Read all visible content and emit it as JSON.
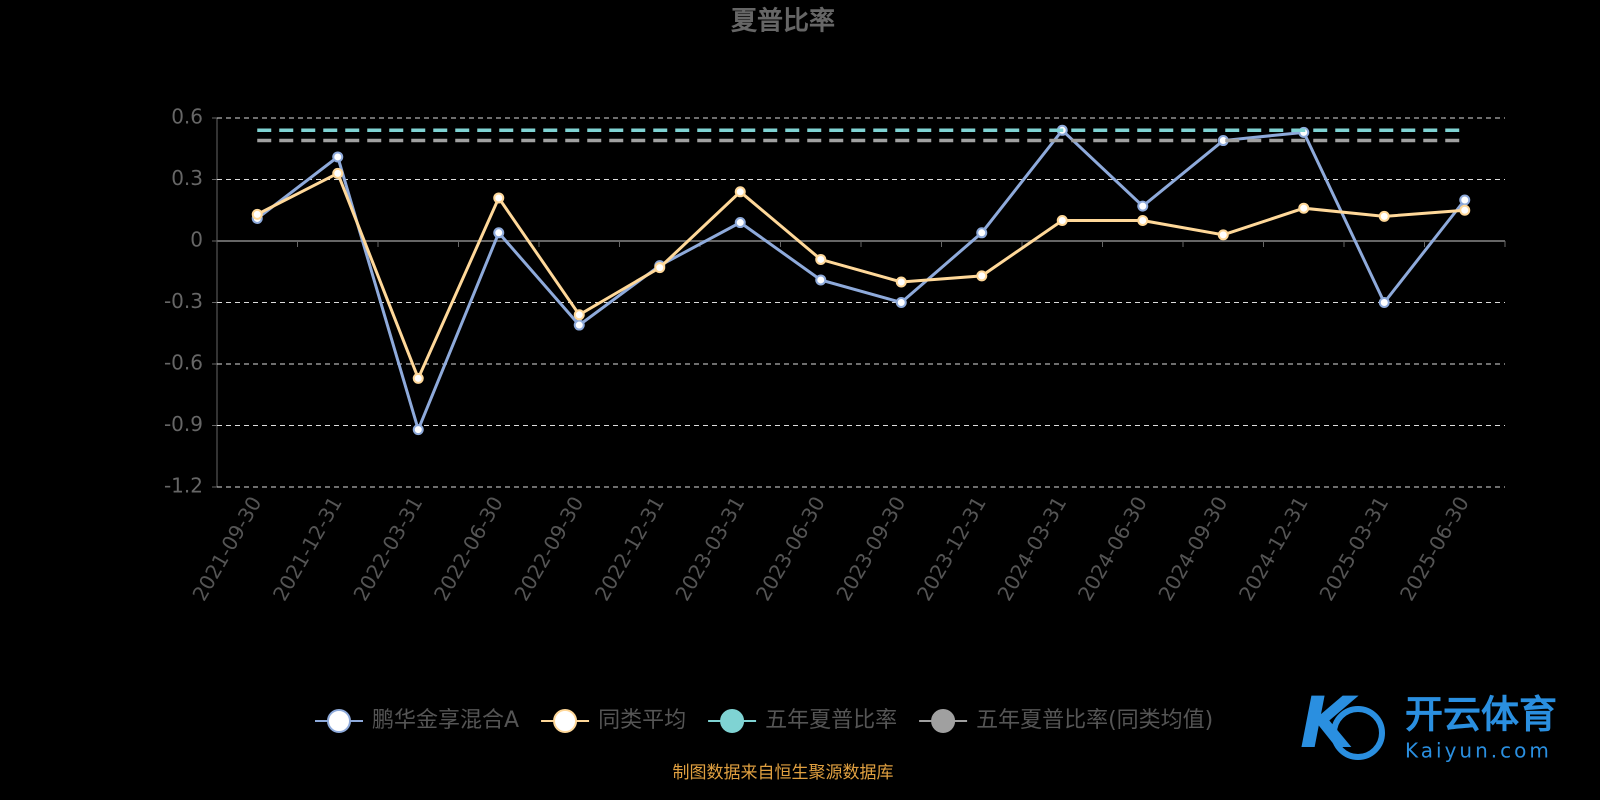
{
  "chart_data": {
    "type": "line",
    "title": "夏普比率",
    "categories": [
      "2021-09-30",
      "2021-12-31",
      "2022-03-31",
      "2022-06-30",
      "2022-09-30",
      "2022-12-31",
      "2023-03-31",
      "2023-06-30",
      "2023-09-30",
      "2023-12-31",
      "2024-03-31",
      "2024-06-30",
      "2024-09-30",
      "2024-12-31",
      "2025-03-31",
      "2025-06-30"
    ],
    "series": [
      {
        "name": "鹏华金享混合A",
        "color": "#8eaadb",
        "values": [
          0.11,
          0.41,
          -0.92,
          0.04,
          -0.41,
          -0.12,
          0.09,
          -0.19,
          -0.3,
          0.04,
          0.54,
          0.17,
          0.49,
          0.53,
          -0.3,
          0.2
        ]
      },
      {
        "name": "同类平均",
        "color": "#ffd899",
        "values": [
          0.13,
          0.33,
          -0.67,
          0.21,
          -0.36,
          -0.13,
          0.24,
          -0.09,
          -0.2,
          -0.17,
          0.1,
          0.1,
          0.03,
          0.16,
          0.12,
          0.15
        ]
      },
      {
        "name": "五年夏普比率",
        "color": "#7fd3d3",
        "value": 0.54
      },
      {
        "name": "五年夏普比率(同类均值)",
        "color": "#a0a0a0",
        "value": 0.49
      }
    ],
    "ylim": [
      -1.2,
      0.6
    ],
    "yticks": [
      0.6,
      0.3,
      0,
      -0.3,
      -0.6,
      -0.9,
      -1.2
    ],
    "grid": true,
    "source": "制图数据来自恒生聚源数据库"
  },
  "watermark": {
    "brand": "开云体育",
    "site": "Kaiyun.com"
  }
}
